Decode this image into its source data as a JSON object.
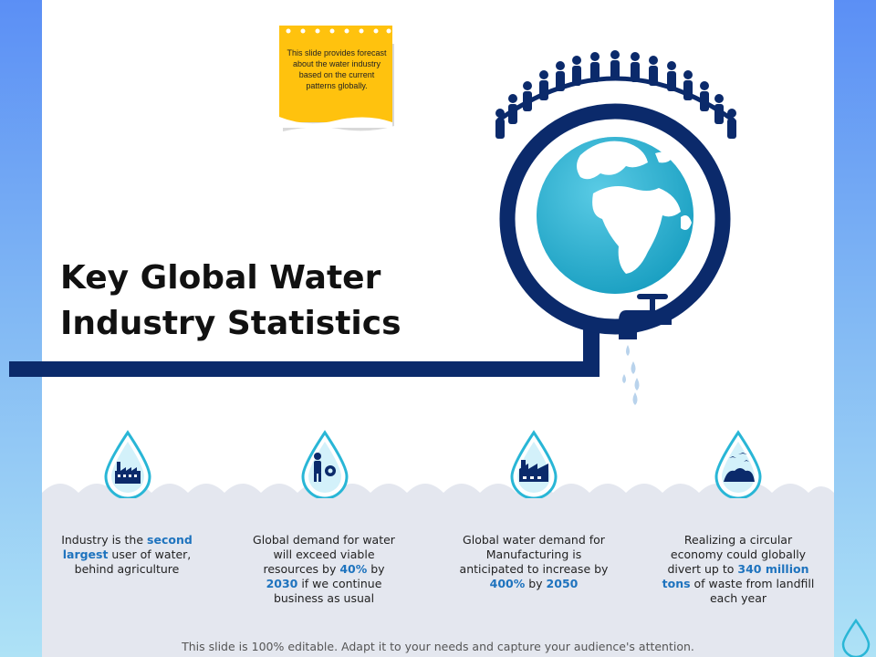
{
  "sticky_note": {
    "text": "This slide provides forecast about the water industry based on the current patterns globally."
  },
  "title": {
    "line1": "Key Global Water",
    "line2": "Industry Statistics"
  },
  "stats": [
    {
      "icon": "factory-icon",
      "parts": [
        "Industry is the ",
        "second largest",
        " user of water, behind agriculture"
      ]
    },
    {
      "icon": "person-gear-icon",
      "parts": [
        "Global demand  for water will exceed viable resources by ",
        "40%",
        " by ",
        "2030",
        " if we continue business as usual"
      ]
    },
    {
      "icon": "manufacturing-plant-icon",
      "parts": [
        "Global water demand for Manufacturing  is anticipated to increase by ",
        "400%",
        " by ",
        "2050",
        ""
      ]
    },
    {
      "icon": "landfill-birds-icon",
      "parts": [
        "Realizing a circular economy could globally divert up to ",
        "340 million tons",
        " of waste from landfill each year"
      ]
    }
  ],
  "footer": {
    "text": "This slide is 100% editable. Adapt it to your needs and capture your audience's attention."
  },
  "colors": {
    "navy": "#0b2a6b",
    "accent_blue": "#1e73be",
    "sticky_yellow": "#ffc20e",
    "drop_cyan": "#29b6d6"
  }
}
